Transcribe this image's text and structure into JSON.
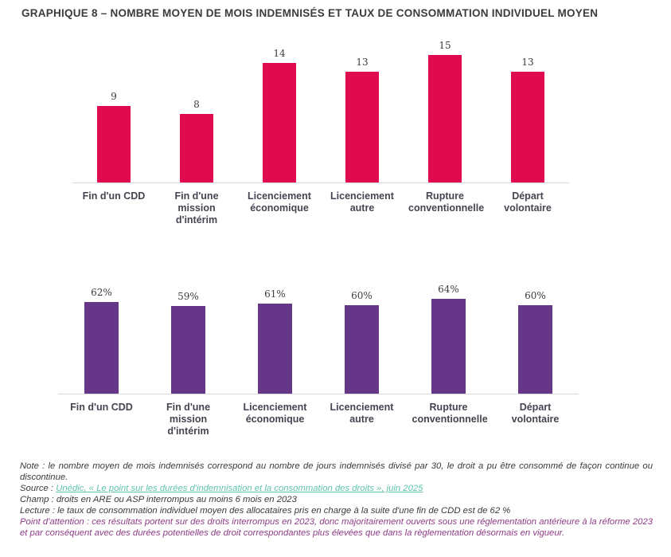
{
  "title": "GRAPHIQUE 8 – NOMBRE MOYEN DE MOIS INDEMNISÉS ET TAUX DE CONSOMMATION INDIVIDUEL MOYEN",
  "palette": {
    "bar_pink": "#e00a4f",
    "bar_purple": "#663689",
    "axis_line": "#d8d8d8",
    "title_text": "#3e3a3b",
    "category_text": "#454551",
    "note_text": "#3a3a3a",
    "source_link": "#5fc2ab",
    "attention_text": "#8e3c86"
  },
  "chart_data": [
    {
      "type": "bar",
      "name": "nombre-moyen-de-mois-indemnises",
      "categories": [
        "Fin d'un CDD",
        "Fin d'une mission d'intérim",
        "Licenciement économique",
        "Licenciement autre",
        "Rupture conventionnelle",
        "Départ volontaire"
      ],
      "values": [
        9,
        8,
        14,
        13,
        15,
        13
      ],
      "data_labels": [
        "9",
        "8",
        "14",
        "13",
        "15",
        "13"
      ],
      "bar_color": "#e00a4f",
      "ylim": [
        0,
        16
      ],
      "grid": false,
      "legend": false,
      "value_labels_position": "above-bar"
    },
    {
      "type": "bar",
      "name": "taux-de-consommation-individuel-moyen",
      "categories": [
        "Fin d'un CDD",
        "Fin d'une mission d'intérim",
        "Licenciement économique",
        "Licenciement autre",
        "Rupture conventionnelle",
        "Départ volontaire"
      ],
      "values": [
        62,
        59,
        61,
        60,
        64,
        60
      ],
      "data_labels": [
        "62%",
        "59%",
        "61%",
        "60%",
        "64%",
        "60%"
      ],
      "bar_color": "#663689",
      "ylim": [
        0,
        70
      ],
      "grid": false,
      "legend": false,
      "value_labels_position": "above-bar"
    }
  ],
  "notes": {
    "note": "Note : le nombre moyen de mois indemnisés correspond au nombre de jours indemnisés divisé par 30, le droit a pu être consommé de façon continue ou discontinue.",
    "source_label": "Source : ",
    "source_link": "Unédic, « Le point sur les durées d'indemnisation et la consommation des droits », juin 2025",
    "champ": "Champ : droits en ARE ou ASP interrompus au moins 6 mois en 2023",
    "lecture": "Lecture : le taux de consommation individuel moyen des allocataires pris en charge à la suite d'une fin de CDD est de 62 %",
    "attention": "Point d'attention : ces résultats portent sur des droits interrompus en 2023, donc majoritairement ouverts sous une réglementation antérieure à la réforme 2023 et par conséquent avec des durées potentielles de droit correspondantes plus élevées que dans la règlementation désormais en vigueur."
  }
}
